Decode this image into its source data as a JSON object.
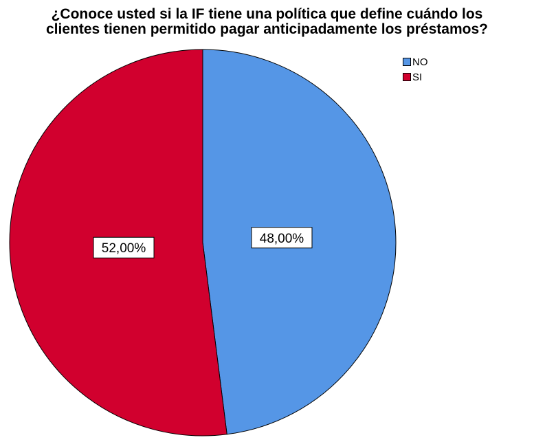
{
  "chart_data": {
    "type": "pie",
    "title_lines": [
      "¿Conoce usted si la IF tiene una política que define cuándo los",
      "clientes tienen permitido pagar anticipadamente los préstamos?"
    ],
    "slices": [
      {
        "name": "NO",
        "value": 48.0,
        "label": "48,00%",
        "color": "#5596e6"
      },
      {
        "name": "SI",
        "value": 52.0,
        "label": "52,00%",
        "color": "#d1002e"
      }
    ],
    "legend_position": "top-right",
    "start": "12 o'clock",
    "direction": "clockwise"
  }
}
